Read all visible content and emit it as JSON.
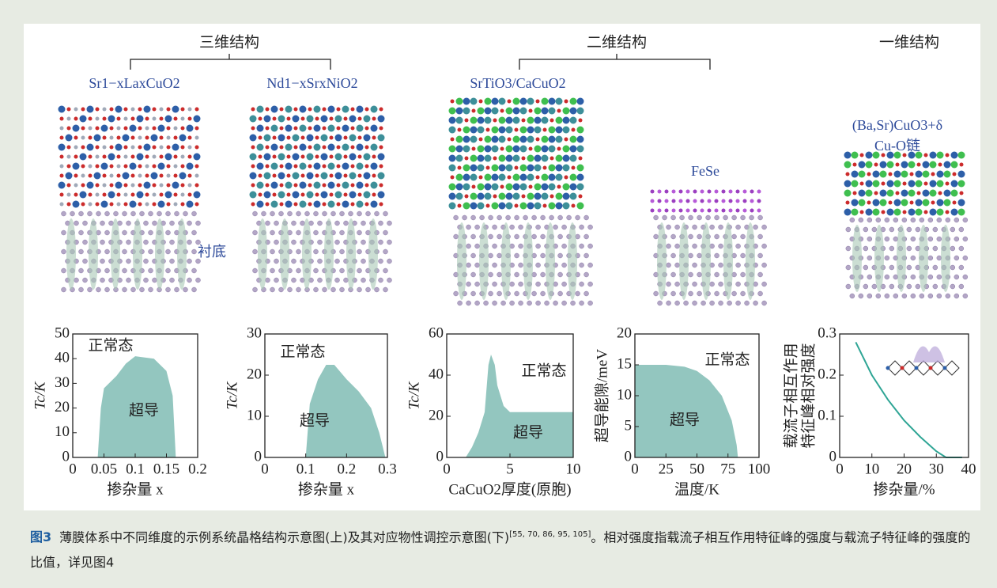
{
  "header": {
    "groups": [
      "三维结构",
      "二维结构",
      "一维结构"
    ],
    "structures": [
      "Sr1−xLaxCuO2",
      "Nd1−xSrxNiO2",
      "SrTiO3/CaCuO2",
      "FeSe",
      "(Ba,Sr)CuO3+δ",
      "Cu-O链"
    ],
    "substrate": "衬底"
  },
  "chart_data": [
    {
      "type": "area",
      "ylabel": "Tc/K",
      "xlabel": "掺杂量 x",
      "color": "#93c6bf",
      "xlim": [
        0,
        0.2
      ],
      "xticks": [
        0,
        0.05,
        0.1,
        0.15,
        0.2
      ],
      "ylim": [
        0,
        50
      ],
      "yticks": [
        0,
        10,
        20,
        30,
        40,
        50
      ],
      "x": [
        0.04,
        0.045,
        0.05,
        0.07,
        0.085,
        0.1,
        0.13,
        0.15,
        0.16,
        0.165
      ],
      "values": [
        0,
        20,
        28,
        33,
        38,
        41,
        40,
        35,
        25,
        0
      ],
      "annotations": [
        "正常态",
        "超导"
      ]
    },
    {
      "type": "area",
      "ylabel": "Tc/K",
      "xlabel": "掺杂量 x",
      "color": "#93c6bf",
      "xlim": [
        0,
        0.3
      ],
      "xticks": [
        0,
        0.1,
        0.2,
        0.3
      ],
      "ylim": [
        0,
        30
      ],
      "yticks": [
        0,
        10,
        20,
        30
      ],
      "x": [
        0.1,
        0.11,
        0.13,
        0.15,
        0.17,
        0.2,
        0.23,
        0.26,
        0.28,
        0.295
      ],
      "values": [
        0,
        13,
        19,
        22.5,
        22.5,
        19,
        16,
        12,
        6,
        0
      ],
      "annotations": [
        "正常态",
        "超导"
      ]
    },
    {
      "type": "area",
      "ylabel": "Tc/K",
      "xlabel": "CaCuO2厚度(原胞)",
      "color": "#93c6bf",
      "xlim": [
        0,
        10
      ],
      "xticks": [
        0,
        5,
        10
      ],
      "ylim": [
        0,
        60
      ],
      "yticks": [
        0,
        20,
        40,
        60
      ],
      "x": [
        1.5,
        2,
        2.5,
        3,
        3.3,
        3.5,
        3.8,
        4,
        4.5,
        5,
        10
      ],
      "values": [
        0,
        5,
        12,
        22,
        45,
        50,
        45,
        35,
        25,
        22,
        22
      ],
      "annotations": [
        "正常态",
        "超导"
      ]
    },
    {
      "type": "area",
      "ylabel": "超导能隙/meV",
      "xlabel": "温度/K",
      "color": "#93c6bf",
      "xlim": [
        0,
        100
      ],
      "xticks": [
        0,
        25,
        50,
        75,
        100
      ],
      "ylim": [
        0,
        20
      ],
      "yticks": [
        0,
        5,
        10,
        15,
        20
      ],
      "x": [
        0,
        25,
        40,
        50,
        60,
        70,
        78,
        82,
        83
      ],
      "values": [
        15,
        15,
        14.7,
        14,
        12.5,
        10,
        6,
        2,
        0
      ],
      "annotations": [
        "正常态",
        "超导"
      ]
    },
    {
      "type": "line",
      "ylabel": [
        "载流子相互作用",
        "特征峰相对强度"
      ],
      "xlabel": "掺杂量/%",
      "color": "#2fa595",
      "xlim": [
        0,
        40
      ],
      "xticks": [
        0,
        10,
        20,
        30,
        40
      ],
      "ylim": [
        0,
        0.3
      ],
      "yticks": [
        0,
        0.1,
        0.2,
        0.3
      ],
      "x": [
        5,
        10,
        15,
        20,
        25,
        30,
        33,
        38
      ],
      "values": [
        0.28,
        0.2,
        0.14,
        0.09,
        0.05,
        0.015,
        0,
        0
      ],
      "annotations": []
    }
  ],
  "caption": {
    "label": "图3",
    "text": "薄膜体系中不同维度的示例系统晶格结构示意图(上)及其对应物性调控示意图(下)",
    "refs": "[55, 70, 86, 95, 105]",
    "text2": "。相对强度指载流子相互作用特征峰的强度与载流子特征峰的强度的比值，详见图4"
  }
}
